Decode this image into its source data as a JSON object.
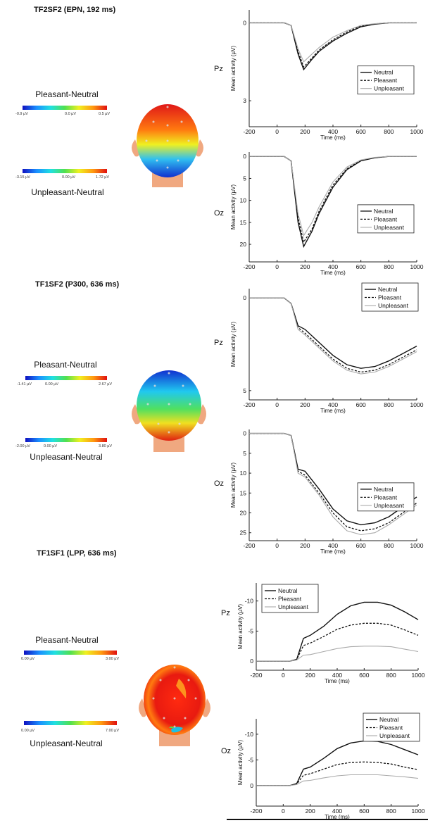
{
  "sections": [
    {
      "title": "TF2SF2 (EPN, 192 ms)",
      "map1": {
        "title": "Pleasant-Neutral",
        "ticks": [
          "-0.9 µV",
          "0.0 µV",
          "0.5 µV"
        ]
      },
      "map2": {
        "title": "Unpleasant-Neutral",
        "ticks": [
          "-3.15 µV",
          "0.00 µV",
          "1.72 µV"
        ]
      }
    },
    {
      "title": "TF1SF2 (P300, 636 ms)",
      "map1": {
        "title": "Pleasant-Neutral",
        "ticks": [
          "-1.41 µV",
          "0.00 µV",
          "2.67 µV"
        ]
      },
      "map2": {
        "title": "Unpleasant-Neutral",
        "ticks": [
          "-2.00 µV",
          "0.00 µV",
          "3.80 µV"
        ]
      }
    },
    {
      "title": "TF1SF1 (LPP, 636 ms)",
      "map1": {
        "title": "Pleasant-Neutral",
        "ticks": [
          "0.00 µV",
          "3.00 µV"
        ]
      },
      "map2": {
        "title": "Unpleasant-Neutral",
        "ticks": [
          "0.00 µV",
          "7.00 µV"
        ]
      }
    }
  ],
  "chart_data": [
    {
      "type": "line",
      "channel": "Pz",
      "xlabel": "Time (ms)",
      "ylabel": "Mean activity (µV)",
      "xlim": [
        -200,
        1000
      ],
      "ylim": [
        -0.5,
        4
      ],
      "inverted": true,
      "xticks": [
        "-200",
        "0",
        "200",
        "400",
        "600",
        "800",
        "1000"
      ],
      "yticks": [
        "0",
        "3"
      ],
      "ytick_values": [
        0,
        3
      ],
      "legend": "right",
      "x": [
        -200,
        0,
        50,
        100,
        150,
        190,
        250,
        300,
        400,
        500,
        600,
        700,
        800,
        900,
        1000
      ],
      "series": [
        {
          "name": "Neutral",
          "values": [
            0,
            0,
            0,
            0.1,
            1.2,
            1.8,
            1.4,
            1.1,
            0.7,
            0.4,
            0.15,
            0.05,
            0,
            0,
            0
          ]
        },
        {
          "name": "Pleasant",
          "values": [
            0,
            0,
            0,
            0.1,
            1.1,
            1.7,
            1.35,
            1.05,
            0.65,
            0.35,
            0.12,
            0.04,
            0,
            0,
            0
          ]
        },
        {
          "name": "Unpleasant",
          "values": [
            0,
            0,
            0,
            0.1,
            1.0,
            1.5,
            1.2,
            0.95,
            0.55,
            0.3,
            0.1,
            0.03,
            0,
            0,
            0
          ]
        }
      ]
    },
    {
      "type": "line",
      "channel": "Oz",
      "xlabel": "Time (ms)",
      "ylabel": "Mean activity (µV)",
      "xlim": [
        -200,
        1000
      ],
      "ylim": [
        -1,
        24
      ],
      "inverted": true,
      "xticks": [
        "-200",
        "0",
        "200",
        "400",
        "600",
        "800",
        "1000"
      ],
      "yticks": [
        "0",
        "5",
        "10",
        "15",
        "20"
      ],
      "ytick_values": [
        0,
        5,
        10,
        15,
        20
      ],
      "legend": "right",
      "x": [
        -200,
        0,
        50,
        100,
        150,
        190,
        250,
        300,
        400,
        500,
        600,
        700,
        800,
        900,
        1000
      ],
      "series": [
        {
          "name": "Neutral",
          "values": [
            0,
            0,
            0,
            1,
            15,
            20.5,
            17,
            13,
            7,
            3,
            1,
            0.3,
            0,
            0,
            0
          ]
        },
        {
          "name": "Pleasant",
          "values": [
            0,
            0,
            0,
            1,
            14,
            19.5,
            16.5,
            12.5,
            6.5,
            2.8,
            0.9,
            0.3,
            0,
            0,
            0
          ]
        },
        {
          "name": "Unpleasant",
          "values": [
            0,
            0,
            0,
            1,
            13,
            18,
            15,
            11.5,
            5.8,
            2.4,
            0.8,
            0.2,
            0,
            0,
            0
          ]
        }
      ]
    },
    {
      "type": "line",
      "channel": "Pz",
      "xlabel": "Time (ms)",
      "ylabel": "Mean activity (µV)",
      "xlim": [
        -200,
        1000
      ],
      "ylim": [
        -0.5,
        5.5
      ],
      "inverted": true,
      "xticks": [
        "-200",
        "0",
        "200",
        "400",
        "600",
        "800",
        "1000"
      ],
      "yticks": [
        "0",
        "5"
      ],
      "ytick_values": [
        0,
        5
      ],
      "legend": "top-right",
      "x": [
        -200,
        0,
        50,
        100,
        150,
        200,
        300,
        400,
        500,
        600,
        700,
        800,
        900,
        1000
      ],
      "series": [
        {
          "name": "Neutral",
          "values": [
            0,
            0,
            0,
            0.3,
            1.5,
            1.7,
            2.4,
            3.1,
            3.6,
            3.8,
            3.7,
            3.4,
            3.0,
            2.6
          ]
        },
        {
          "name": "Pleasant",
          "values": [
            0,
            0,
            0,
            0.3,
            1.6,
            1.9,
            2.6,
            3.3,
            3.8,
            4.0,
            3.9,
            3.6,
            3.2,
            2.8
          ]
        },
        {
          "name": "Unpleasant",
          "values": [
            0,
            0,
            0,
            0.3,
            1.7,
            2.0,
            2.7,
            3.4,
            3.9,
            4.1,
            4.0,
            3.7,
            3.3,
            2.9
          ]
        }
      ]
    },
    {
      "type": "line",
      "channel": "Oz",
      "xlabel": "Time (ms)",
      "ylabel": "Mean activity (µV)",
      "xlim": [
        -200,
        1000
      ],
      "ylim": [
        -1,
        27
      ],
      "inverted": true,
      "xticks": [
        "-200",
        "0",
        "200",
        "400",
        "600",
        "800",
        "1000"
      ],
      "yticks": [
        "0",
        "5",
        "10",
        "15",
        "20",
        "25"
      ],
      "ytick_values": [
        0,
        5,
        10,
        15,
        20,
        25
      ],
      "legend": "right",
      "x": [
        -200,
        0,
        50,
        100,
        150,
        200,
        300,
        400,
        500,
        600,
        700,
        800,
        900,
        1000
      ],
      "series": [
        {
          "name": "Neutral",
          "values": [
            0,
            0,
            0,
            0.5,
            9,
            9.5,
            14,
            19,
            22,
            23,
            22.5,
            21,
            18.5,
            16
          ]
        },
        {
          "name": "Pleasant",
          "values": [
            0,
            0,
            0,
            0.5,
            9.5,
            10.5,
            15,
            20,
            23.5,
            24.5,
            24,
            22.5,
            20,
            17.5
          ]
        },
        {
          "name": "Unpleasant",
          "values": [
            0,
            0,
            0,
            0.5,
            10,
            11,
            15.5,
            21,
            24.5,
            25.5,
            25,
            23,
            20.5,
            18
          ]
        }
      ]
    },
    {
      "type": "line",
      "channel": "Pz",
      "xlabel": "Time (ms)",
      "ylabel": "Mean activity (µV)",
      "xlim": [
        -200,
        1000
      ],
      "ylim": [
        1.5,
        -13
      ],
      "inverted": false,
      "xticks": [
        "-200",
        "0",
        "200",
        "400",
        "600",
        "800",
        "1000"
      ],
      "yticks": [
        "-10",
        "-5",
        "0"
      ],
      "ytick_values": [
        -10,
        -5,
        0
      ],
      "legend": "top-left",
      "x": [
        -200,
        0,
        50,
        100,
        150,
        200,
        300,
        400,
        500,
        600,
        700,
        800,
        900,
        1000
      ],
      "series": [
        {
          "name": "Neutral",
          "values": [
            0,
            0,
            0,
            -0.3,
            -3.8,
            -4.3,
            -5.8,
            -7.8,
            -9.2,
            -9.8,
            -9.8,
            -9.3,
            -8.2,
            -6.9
          ]
        },
        {
          "name": "Pleasant",
          "values": [
            0,
            0,
            0,
            -0.3,
            -2.6,
            -3.0,
            -4.1,
            -5.3,
            -6.0,
            -6.3,
            -6.3,
            -6.0,
            -5.2,
            -4.3
          ]
        },
        {
          "name": "Unpleasant",
          "values": [
            0,
            0,
            0,
            -0.2,
            -1.0,
            -1.1,
            -1.6,
            -2.1,
            -2.4,
            -2.5,
            -2.5,
            -2.4,
            -2.0,
            -1.6
          ]
        }
      ]
    },
    {
      "type": "line",
      "channel": "Oz",
      "xlabel": "Time (ms)",
      "ylabel": "Mean activity (µV)",
      "xlim": [
        -200,
        1000
      ],
      "ylim": [
        4,
        -13
      ],
      "inverted": false,
      "xticks": [
        "-200",
        "0",
        "200",
        "400",
        "600",
        "800",
        "1000"
      ],
      "yticks": [
        "-10",
        "-5",
        "0"
      ],
      "ytick_values": [
        -10,
        -5,
        0
      ],
      "legend": "top-right",
      "x": [
        -200,
        0,
        50,
        100,
        150,
        200,
        300,
        400,
        500,
        600,
        700,
        800,
        900,
        1000
      ],
      "series": [
        {
          "name": "Neutral",
          "values": [
            0,
            0,
            0,
            -0.4,
            -3.2,
            -3.6,
            -5.3,
            -7.2,
            -8.3,
            -8.7,
            -8.6,
            -8.0,
            -7.0,
            -6.0
          ]
        },
        {
          "name": "Pleasant",
          "values": [
            0,
            0,
            0,
            -0.3,
            -2.0,
            -2.3,
            -3.2,
            -4.1,
            -4.5,
            -4.6,
            -4.5,
            -4.2,
            -3.6,
            -3.1
          ]
        },
        {
          "name": "Unpleasant",
          "values": [
            0,
            0,
            0,
            -0.2,
            -0.9,
            -1.0,
            -1.5,
            -1.9,
            -2.1,
            -2.1,
            -2.1,
            -1.9,
            -1.7,
            -1.4
          ]
        }
      ]
    }
  ]
}
